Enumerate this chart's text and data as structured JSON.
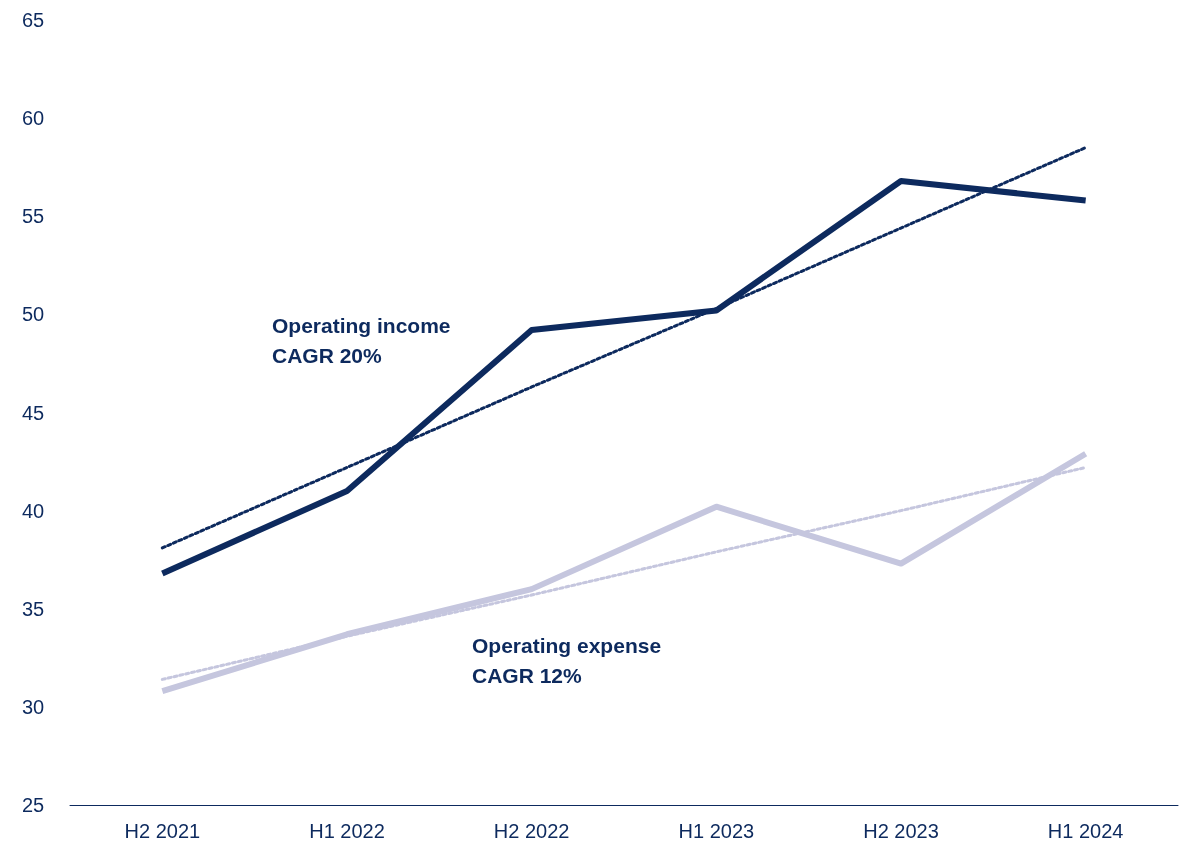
{
  "chart_data": {
    "type": "line",
    "categories": [
      "H2 2021",
      "H1 2022",
      "H2 2022",
      "H1 2023",
      "H2 2023",
      "H1 2024"
    ],
    "series": [
      {
        "name": "Operating income",
        "color": "#0d2a5e",
        "values": [
          36.8,
          41.0,
          49.2,
          50.2,
          56.8,
          55.8
        ]
      },
      {
        "name": "Operating expense",
        "color": "#c5c6de",
        "values": [
          30.8,
          33.7,
          36.0,
          40.2,
          37.3,
          42.9
        ]
      },
      {
        "color": "#0d2a5e",
        "line_style": "dotted",
        "values": [
          38.1,
          42.2,
          46.3,
          50.3,
          54.4,
          58.5
        ]
      },
      {
        "color": "#c5c6de",
        "line_style": "dotted",
        "values": [
          31.4,
          33.6,
          35.7,
          37.9,
          40.0,
          42.2
        ]
      }
    ],
    "annotations": [
      "CAGR 20%",
      "CAGR 12%"
    ],
    "ylim": [
      25,
      65
    ],
    "yticks": [
      25,
      30,
      35,
      40,
      45,
      50,
      55,
      60,
      65
    ],
    "grid": false,
    "legend": false,
    "marker": "none",
    "line_style": "solid"
  }
}
